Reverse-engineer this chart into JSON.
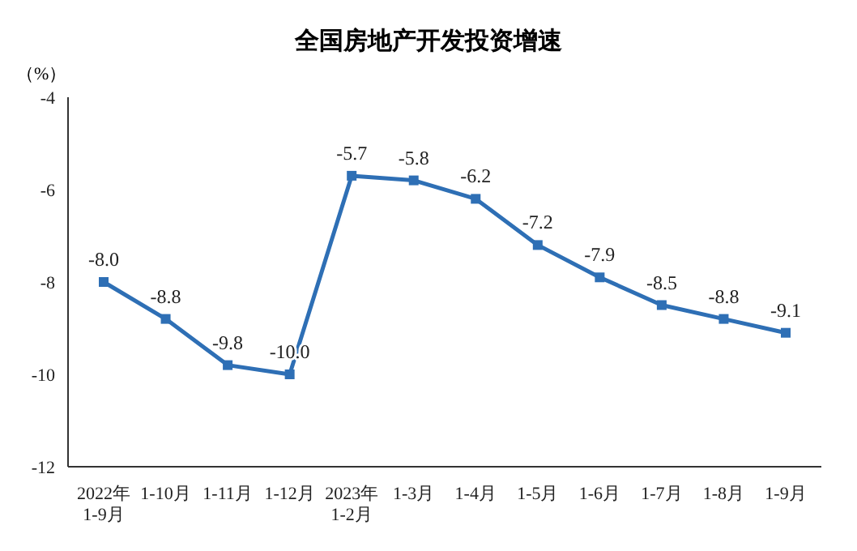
{
  "chart_data": {
    "type": "line",
    "title": "全国房地产开发投资增速",
    "ylabel": "（%）",
    "categories": [
      "2022年\n1-9月",
      "1-10月",
      "1-11月",
      "1-12月",
      "2023年\n1-2月",
      "1-3月",
      "1-4月",
      "1-5月",
      "1-6月",
      "1-7月",
      "1-8月",
      "1-9月"
    ],
    "series": [
      {
        "color": "#2e6fb5",
        "values": [
          -8.0,
          -8.8,
          -9.8,
          -10.0,
          -5.7,
          -5.8,
          -6.2,
          -7.2,
          -7.9,
          -8.5,
          -8.8,
          -9.1
        ],
        "value_labels": [
          "-8.0",
          "-8.8",
          "-9.8",
          "-10.0",
          "-5.7",
          "-5.8",
          "-6.2",
          "-7.2",
          "-7.9",
          "-8.5",
          "-8.8",
          "-9.1"
        ]
      }
    ],
    "ylim": [
      -12,
      -4
    ],
    "yticks": [
      -12,
      -10,
      -8,
      -6,
      -4
    ],
    "grid": false,
    "legend": false,
    "marker": "square",
    "line_style": "solid"
  }
}
